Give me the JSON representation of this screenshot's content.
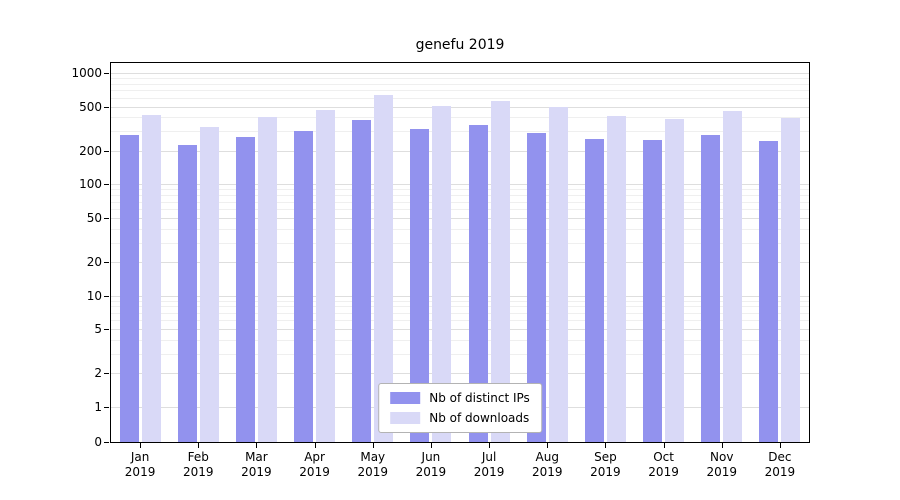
{
  "chart_data": {
    "type": "bar",
    "title": "genefu 2019",
    "categories": [
      "Jan",
      "Feb",
      "Mar",
      "Apr",
      "May",
      "Jun",
      "Jul",
      "Aug",
      "Sep",
      "Oct",
      "Nov",
      "Dec"
    ],
    "x_tick_year": "2019",
    "series": [
      {
        "name": "Nb of distinct IPs",
        "color": "#9292ee",
        "values": [
          275,
          225,
          265,
          300,
          380,
          315,
          340,
          290,
          255,
          250,
          275,
          245
        ]
      },
      {
        "name": "Nb of downloads",
        "color": "#d9d9f7",
        "values": [
          420,
          325,
          400,
          465,
          630,
          505,
          565,
          490,
          410,
          385,
          455,
          395
        ]
      }
    ],
    "yscale": "symlog",
    "y_ticks": [
      0,
      1,
      2,
      5,
      10,
      20,
      50,
      100,
      200,
      500,
      1000
    ],
    "ylim": [
      0,
      1000
    ],
    "xlabel": "",
    "ylabel": "",
    "grid": true,
    "legend_position": "lower center"
  }
}
